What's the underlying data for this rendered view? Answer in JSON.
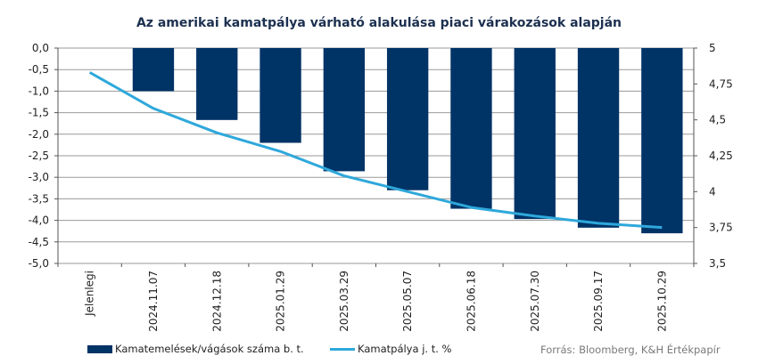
{
  "chart_data": {
    "type": "bar+line",
    "title": "Az amerikai kamatpálya várható alakulása piaci várakozások alapján",
    "categories": [
      "Jelenlegi",
      "2024.11.07",
      "2024.12.18",
      "2025.01.29",
      "2025.03.29",
      "2025.05.07",
      "2025.06.18",
      "2025.07.30",
      "2025.09.17",
      "2025.10.29"
    ],
    "bar_series": {
      "name": "Kamatemelések/vágások száma b. t.",
      "values": [
        0,
        -1.0,
        -1.67,
        -2.2,
        -2.86,
        -3.3,
        -3.73,
        -3.97,
        -4.17,
        -4.3
      ],
      "color": "#003366",
      "axis": "left",
      "ylim": [
        -5.0,
        0.0
      ],
      "ticks": [
        "0,0",
        "-0,5",
        "-1,0",
        "-1,5",
        "-2,0",
        "-2,5",
        "-3,0",
        "-3,5",
        "-4,0",
        "-4,5",
        "-5,0"
      ]
    },
    "line_series": {
      "name": "Kamatpálya j. t. %",
      "values": [
        4.83,
        4.58,
        4.41,
        4.28,
        4.11,
        4.0,
        3.89,
        3.83,
        3.78,
        3.75
      ],
      "color": "#2ea8db",
      "axis": "right",
      "ylim": [
        3.5,
        5.0
      ],
      "ticks": [
        "5",
        "4,75",
        "4,5",
        "4,25",
        "4",
        "3,75",
        "3,5"
      ]
    },
    "grid": true,
    "legend": "bottom-left"
  },
  "source": "Forrás: Bloomberg, K&H Értékpapír"
}
